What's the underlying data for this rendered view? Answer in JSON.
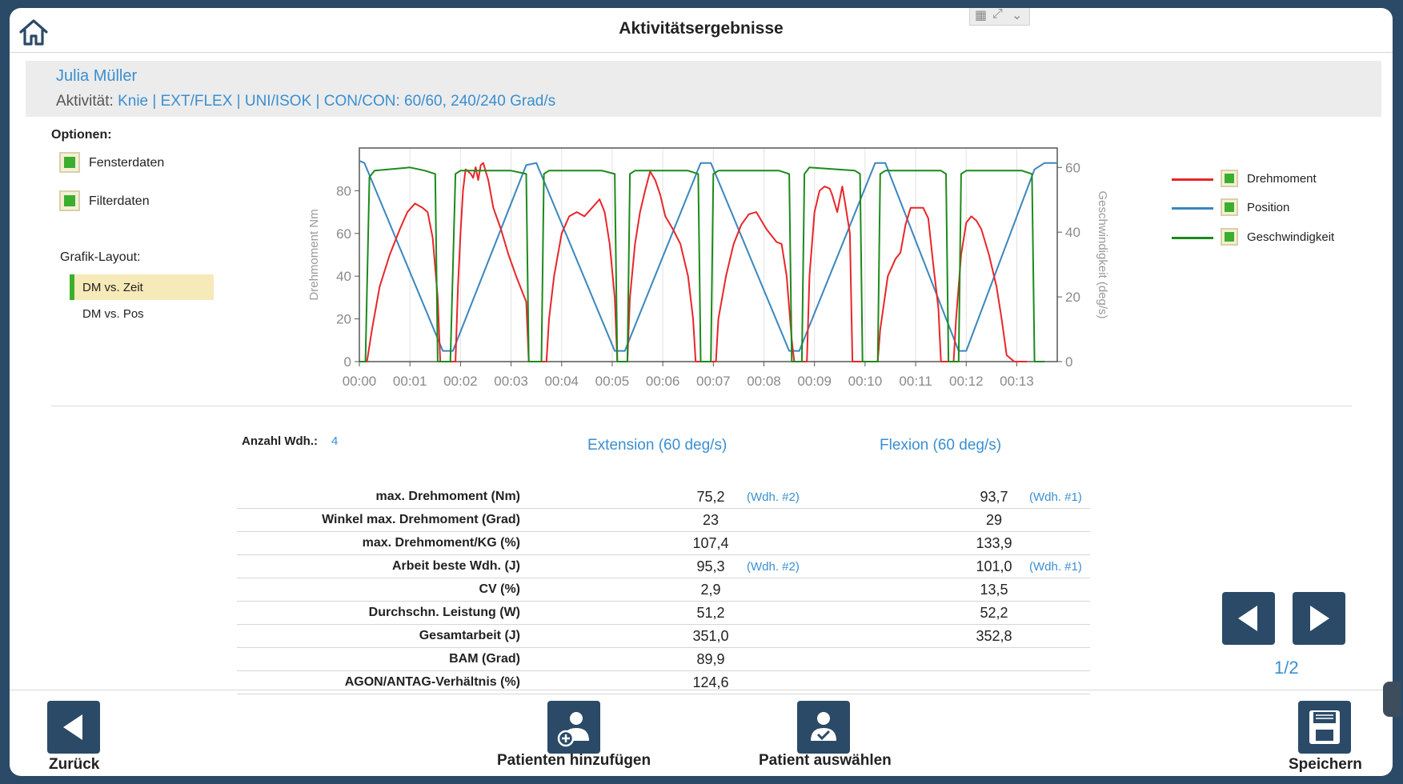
{
  "header": {
    "title": "Aktivitätsergebnisse"
  },
  "patient": {
    "name": "Julia Müller",
    "activity_label": "Aktivität:",
    "activity_value": "Knie | EXT/FLEX | UNI/ISOK | CON/CON: 60/60, 240/240 Grad/s"
  },
  "options": {
    "title": "Optionen:",
    "items": [
      {
        "label": "Fensterdaten",
        "checked": true
      },
      {
        "label": "Filterdaten",
        "checked": true
      }
    ],
    "layout_title": "Grafik-Layout:",
    "layouts": [
      {
        "label": "DM vs. Zeit",
        "selected": true
      },
      {
        "label": "DM vs. Pos",
        "selected": false
      }
    ]
  },
  "legend": [
    {
      "label": "Drehmoment",
      "color": "#e8262a"
    },
    {
      "label": "Position",
      "color": "#3a86bd"
    },
    {
      "label": "Geschwindigkeit",
      "color": "#1c8a1c"
    }
  ],
  "chart_data": {
    "type": "line",
    "ylabel": "Drehmoment Nm",
    "y2label": "Geschwindigkeit (deg/s)",
    "x_ticks": [
      "00:00",
      "00:01",
      "00:02",
      "00:03",
      "00:04",
      "00:05",
      "00:06",
      "00:07",
      "00:08",
      "00:09",
      "00:10",
      "00:11",
      "00:12",
      "00:13"
    ],
    "xlim": [
      0,
      13.8
    ],
    "ylim": [
      0,
      100
    ],
    "y_ticks": [
      0,
      20,
      40,
      60,
      80
    ],
    "y2lim": [
      0,
      66
    ],
    "y2_ticks": [
      0,
      20,
      40,
      60
    ],
    "series": [
      {
        "name": "Drehmoment",
        "color": "#e8262a",
        "axis": "left",
        "points": [
          [
            0,
            0
          ],
          [
            0.15,
            0
          ],
          [
            0.25,
            15
          ],
          [
            0.4,
            35
          ],
          [
            0.6,
            50
          ],
          [
            0.8,
            62
          ],
          [
            0.95,
            70
          ],
          [
            1.1,
            74
          ],
          [
            1.25,
            72
          ],
          [
            1.35,
            70
          ],
          [
            1.45,
            58
          ],
          [
            1.55,
            30
          ],
          [
            1.6,
            0
          ],
          [
            1.9,
            0
          ],
          [
            1.95,
            35
          ],
          [
            2.0,
            60
          ],
          [
            2.05,
            80
          ],
          [
            2.1,
            90
          ],
          [
            2.2,
            88
          ],
          [
            2.25,
            86
          ],
          [
            2.3,
            91
          ],
          [
            2.35,
            85
          ],
          [
            2.4,
            92
          ],
          [
            2.45,
            93
          ],
          [
            2.55,
            85
          ],
          [
            2.65,
            72
          ],
          [
            2.8,
            62
          ],
          [
            2.95,
            50
          ],
          [
            3.1,
            40
          ],
          [
            3.2,
            34
          ],
          [
            3.3,
            28
          ],
          [
            3.35,
            0
          ],
          [
            3.7,
            0
          ],
          [
            3.75,
            20
          ],
          [
            3.85,
            40
          ],
          [
            4.0,
            60
          ],
          [
            4.15,
            68
          ],
          [
            4.3,
            70
          ],
          [
            4.45,
            68
          ],
          [
            4.6,
            72
          ],
          [
            4.75,
            76
          ],
          [
            4.85,
            70
          ],
          [
            4.95,
            55
          ],
          [
            5.05,
            30
          ],
          [
            5.1,
            0
          ],
          [
            5.3,
            0
          ],
          [
            5.35,
            30
          ],
          [
            5.45,
            55
          ],
          [
            5.55,
            70
          ],
          [
            5.65,
            80
          ],
          [
            5.75,
            89
          ],
          [
            5.85,
            85
          ],
          [
            5.95,
            78
          ],
          [
            6.05,
            68
          ],
          [
            6.2,
            62
          ],
          [
            6.35,
            55
          ],
          [
            6.5,
            40
          ],
          [
            6.6,
            20
          ],
          [
            6.65,
            0
          ],
          [
            7.05,
            0
          ],
          [
            7.1,
            20
          ],
          [
            7.25,
            40
          ],
          [
            7.4,
            55
          ],
          [
            7.55,
            64
          ],
          [
            7.7,
            69
          ],
          [
            7.85,
            70
          ],
          [
            7.95,
            66
          ],
          [
            8.05,
            62
          ],
          [
            8.15,
            59
          ],
          [
            8.25,
            56
          ],
          [
            8.35,
            55
          ],
          [
            8.45,
            40
          ],
          [
            8.55,
            10
          ],
          [
            8.6,
            0
          ],
          [
            8.85,
            0
          ],
          [
            8.9,
            40
          ],
          [
            9.0,
            70
          ],
          [
            9.1,
            80
          ],
          [
            9.2,
            82
          ],
          [
            9.3,
            81
          ],
          [
            9.35,
            78
          ],
          [
            9.45,
            70
          ],
          [
            9.55,
            82
          ],
          [
            9.6,
            75
          ],
          [
            9.7,
            60
          ],
          [
            9.75,
            0
          ],
          [
            10.25,
            0
          ],
          [
            10.3,
            15
          ],
          [
            10.45,
            40
          ],
          [
            10.6,
            48
          ],
          [
            10.7,
            51
          ],
          [
            10.8,
            64
          ],
          [
            10.9,
            72
          ],
          [
            11.0,
            72
          ],
          [
            11.15,
            72
          ],
          [
            11.25,
            67
          ],
          [
            11.35,
            45
          ],
          [
            11.45,
            25
          ],
          [
            11.5,
            0
          ],
          [
            11.75,
            0
          ],
          [
            11.8,
            20
          ],
          [
            11.9,
            50
          ],
          [
            12.0,
            65
          ],
          [
            12.1,
            68
          ],
          [
            12.2,
            66
          ],
          [
            12.3,
            62
          ],
          [
            12.45,
            50
          ],
          [
            12.6,
            35
          ],
          [
            12.7,
            20
          ],
          [
            12.8,
            3
          ],
          [
            12.95,
            0
          ],
          [
            13.2,
            0
          ]
        ]
      },
      {
        "name": "Position",
        "color": "#3a86bd",
        "axis": "left",
        "points": [
          [
            0,
            94
          ],
          [
            0.1,
            93
          ],
          [
            1.65,
            5
          ],
          [
            1.85,
            5
          ],
          [
            3.3,
            92
          ],
          [
            3.5,
            93
          ],
          [
            5.05,
            5
          ],
          [
            5.25,
            5
          ],
          [
            6.75,
            93
          ],
          [
            6.95,
            93
          ],
          [
            8.5,
            5
          ],
          [
            8.7,
            5
          ],
          [
            10.2,
            93
          ],
          [
            10.4,
            93
          ],
          [
            11.85,
            5
          ],
          [
            12.0,
            5
          ],
          [
            13.35,
            90
          ],
          [
            13.55,
            93
          ],
          [
            13.8,
            93
          ]
        ]
      },
      {
        "name": "Geschwindigkeit",
        "color": "#1c8a1c",
        "axis": "right",
        "points": [
          [
            0,
            0
          ],
          [
            0.12,
            0
          ],
          [
            0.2,
            57
          ],
          [
            0.3,
            59
          ],
          [
            1.0,
            60
          ],
          [
            1.3,
            59
          ],
          [
            1.5,
            58
          ],
          [
            1.55,
            0
          ],
          [
            1.8,
            0
          ],
          [
            1.9,
            58
          ],
          [
            2.0,
            59
          ],
          [
            3.0,
            59
          ],
          [
            3.3,
            58
          ],
          [
            3.35,
            0
          ],
          [
            3.6,
            0
          ],
          [
            3.65,
            58
          ],
          [
            3.75,
            59
          ],
          [
            4.8,
            59
          ],
          [
            5.05,
            58
          ],
          [
            5.1,
            0
          ],
          [
            5.3,
            0
          ],
          [
            5.35,
            58
          ],
          [
            5.45,
            59
          ],
          [
            6.5,
            59
          ],
          [
            6.7,
            58
          ],
          [
            6.75,
            0
          ],
          [
            6.95,
            0
          ],
          [
            7.0,
            58
          ],
          [
            7.1,
            59
          ],
          [
            8.3,
            59
          ],
          [
            8.5,
            58
          ],
          [
            8.55,
            0
          ],
          [
            8.75,
            0
          ],
          [
            8.8,
            58
          ],
          [
            8.9,
            60
          ],
          [
            9.8,
            59
          ],
          [
            9.9,
            58
          ],
          [
            9.95,
            0
          ],
          [
            10.25,
            0
          ],
          [
            10.3,
            58
          ],
          [
            10.4,
            59
          ],
          [
            11.5,
            59
          ],
          [
            11.6,
            58
          ],
          [
            11.65,
            0
          ],
          [
            11.85,
            0
          ],
          [
            11.9,
            58
          ],
          [
            12.0,
            59
          ],
          [
            13.1,
            59
          ],
          [
            13.3,
            58
          ],
          [
            13.35,
            0
          ],
          [
            13.55,
            0
          ]
        ]
      }
    ]
  },
  "results": {
    "reps_label": "Anzahl Wdh.:",
    "reps_value": "4",
    "col1_head": "Extension (60 deg/s)",
    "col2_head": "Flexion (60 deg/s)",
    "rows": [
      {
        "label": "max. Drehmoment (Nm)",
        "v1": "75,2",
        "w1": "(Wdh. #2)",
        "v2": "93,7",
        "w2": "(Wdh. #1)"
      },
      {
        "label": "Winkel max. Drehmoment (Grad)",
        "v1": "23",
        "w1": "",
        "v2": "29",
        "w2": ""
      },
      {
        "label": "max. Drehmoment/KG (%)",
        "v1": "107,4",
        "w1": "",
        "v2": "133,9",
        "w2": ""
      },
      {
        "label": "Arbeit beste Wdh. (J)",
        "v1": "95,3",
        "w1": "(Wdh. #2)",
        "v2": "101,0",
        "w2": "(Wdh. #1)"
      },
      {
        "label": "CV (%)",
        "v1": "2,9",
        "w1": "",
        "v2": "13,5",
        "w2": ""
      },
      {
        "label": "Durchschn. Leistung (W)",
        "v1": "51,2",
        "w1": "",
        "v2": "52,2",
        "w2": ""
      },
      {
        "label": "Gesamtarbeit (J)",
        "v1": "351,0",
        "w1": "",
        "v2": "352,8",
        "w2": ""
      },
      {
        "label": "BAM (Grad)",
        "v1": "89,9",
        "w1": "",
        "v2": "",
        "w2": ""
      },
      {
        "label": "AGON/ANTAG-Verhältnis (%)",
        "v1": "124,6",
        "w1": "",
        "v2": "",
        "w2": ""
      }
    ]
  },
  "pager": {
    "indicator": "1/2"
  },
  "footer": {
    "back_label": "Zurück",
    "add_patient_label": "Patienten hinzufügen",
    "select_patient_label": "Patient auswählen",
    "save_label": "Speichern"
  },
  "colors": {
    "accent": "#3a8fd0",
    "button": "#2b4a68",
    "check": "#3cae2e"
  }
}
